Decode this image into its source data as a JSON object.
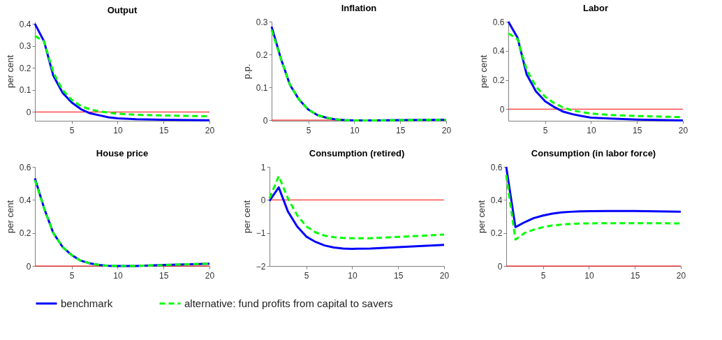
{
  "chart_data": [
    {
      "type": "line",
      "title": "Output",
      "ylabel": "per cent",
      "x": [
        1,
        2,
        3,
        4,
        5,
        6,
        7,
        8,
        9,
        10,
        12,
        15,
        20
      ],
      "xlim": [
        1,
        20
      ],
      "xticks": [
        5,
        10,
        15,
        20
      ],
      "ylim": [
        -0.04,
        0.41
      ],
      "yticks": [
        0,
        0.1,
        0.2,
        0.3,
        0.4
      ],
      "grid": false,
      "legend": "bottom",
      "series": [
        {
          "name": "benchmark",
          "color": "#0000ff",
          "line_style": "solid",
          "values": [
            0.4,
            0.32,
            0.165,
            0.088,
            0.043,
            0.013,
            -0.006,
            -0.015,
            -0.024,
            -0.029,
            -0.033,
            -0.035,
            -0.038
          ]
        },
        {
          "name": "alternative: fund profits from capital to savers",
          "color": "#00ff00",
          "line_style": "dashed",
          "values": [
            0.345,
            0.32,
            0.18,
            0.1,
            0.055,
            0.027,
            0.012,
            0.003,
            -0.003,
            -0.008,
            -0.013,
            -0.016,
            -0.02
          ]
        }
      ],
      "ref_lines": [
        {
          "axis": "y",
          "value": 0,
          "color": "#ff0000"
        }
      ]
    },
    {
      "type": "line",
      "title": "Inflation",
      "ylabel": "p.p.",
      "x": [
        1,
        2,
        3,
        4,
        5,
        6,
        7,
        8,
        9,
        10,
        12,
        15,
        20
      ],
      "xlim": [
        1,
        20
      ],
      "xticks": [
        5,
        10,
        15,
        20
      ],
      "ylim": [
        -0.002,
        0.3
      ],
      "yticks": [
        0,
        0.1,
        0.2,
        0.3
      ],
      "grid": false,
      "legend": "bottom",
      "series": [
        {
          "name": "benchmark",
          "color": "#0000ff",
          "line_style": "solid",
          "values": [
            0.285,
            0.188,
            0.107,
            0.062,
            0.032,
            0.015,
            0.007,
            0.002,
            0,
            -0.001,
            -0.001,
            0,
            0.001
          ]
        },
        {
          "name": "alternative: fund profits from capital to savers",
          "color": "#00ff00",
          "line_style": "dashed",
          "values": [
            0.275,
            0.188,
            0.107,
            0.062,
            0.032,
            0.015,
            0.007,
            0.002,
            0,
            -0.001,
            -0.001,
            0,
            0.001
          ]
        }
      ],
      "ref_lines": [
        {
          "axis": "y",
          "value": 0,
          "color": "#ff0000"
        }
      ]
    },
    {
      "type": "line",
      "title": "Labor",
      "ylabel": "per cent",
      "x": [
        1,
        2,
        3,
        4,
        5,
        6,
        7,
        8,
        9,
        10,
        12,
        15,
        20
      ],
      "xlim": [
        1,
        20
      ],
      "xticks": [
        5,
        10,
        15,
        20
      ],
      "ylim": [
        -0.08,
        0.6
      ],
      "yticks": [
        0,
        0.2,
        0.4,
        0.6
      ],
      "grid": false,
      "legend": "bottom",
      "series": [
        {
          "name": "benchmark",
          "color": "#0000ff",
          "line_style": "solid",
          "values": [
            0.6,
            0.49,
            0.237,
            0.122,
            0.054,
            0.014,
            -0.018,
            -0.035,
            -0.048,
            -0.058,
            -0.065,
            -0.072,
            -0.078
          ]
        },
        {
          "name": "alternative: fund profits from capital to savers",
          "color": "#00ff00",
          "line_style": "dashed",
          "values": [
            0.52,
            0.48,
            0.27,
            0.155,
            0.085,
            0.04,
            0.01,
            -0.01,
            -0.02,
            -0.03,
            -0.04,
            -0.047,
            -0.055
          ]
        }
      ],
      "ref_lines": [
        {
          "axis": "y",
          "value": 0,
          "color": "#ff0000"
        }
      ]
    },
    {
      "type": "line",
      "title": "House price",
      "ylabel": "per cent",
      "x": [
        1,
        2,
        3,
        4,
        5,
        6,
        7,
        8,
        9,
        10,
        12,
        15,
        20
      ],
      "xlim": [
        1,
        20
      ],
      "xticks": [
        5,
        10,
        15,
        20
      ],
      "ylim": [
        0,
        0.6
      ],
      "yticks": [
        0,
        0.2,
        0.4,
        0.6
      ],
      "grid": false,
      "legend": "bottom",
      "series": [
        {
          "name": "benchmark",
          "color": "#0000ff",
          "line_style": "solid",
          "values": [
            0.53,
            0.35,
            0.2,
            0.116,
            0.066,
            0.032,
            0.016,
            0.006,
            0.001,
            0,
            0,
            0.006,
            0.014
          ]
        },
        {
          "name": "alternative: fund profits from capital to savers",
          "color": "#00ff00",
          "line_style": "dashed",
          "values": [
            0.52,
            0.35,
            0.2,
            0.116,
            0.066,
            0.032,
            0.016,
            0.006,
            0.001,
            0,
            0,
            0.006,
            0.014
          ]
        }
      ],
      "ref_lines": [
        {
          "axis": "y",
          "value": 0,
          "color": "#ff0000"
        }
      ]
    },
    {
      "type": "line",
      "title": "Consumption (retired)",
      "ylabel": "per cent",
      "x": [
        1,
        2,
        3,
        4,
        5,
        6,
        7,
        8,
        9,
        10,
        12,
        15,
        20
      ],
      "xlim": [
        1,
        20
      ],
      "xticks": [
        5,
        10,
        15,
        20
      ],
      "ylim": [
        -2,
        1
      ],
      "yticks": [
        -2,
        -1,
        0,
        1
      ],
      "grid": false,
      "legend": "bottom",
      "series": [
        {
          "name": "benchmark",
          "color": "#0000ff",
          "line_style": "solid",
          "values": [
            -0.03,
            0.38,
            -0.35,
            -0.8,
            -1.11,
            -1.27,
            -1.38,
            -1.44,
            -1.47,
            -1.48,
            -1.47,
            -1.43,
            -1.36
          ]
        },
        {
          "name": "alternative: fund profits from capital to savers",
          "color": "#00ff00",
          "line_style": "dashed",
          "values": [
            0.05,
            0.72,
            0.05,
            -0.46,
            -0.8,
            -0.98,
            -1.08,
            -1.13,
            -1.15,
            -1.16,
            -1.16,
            -1.12,
            -1.05
          ]
        }
      ],
      "ref_lines": [
        {
          "axis": "y",
          "value": 0,
          "color": "#ff0000"
        }
      ]
    },
    {
      "type": "line",
      "title": "Consumption (in labor force)",
      "ylabel": "per cent",
      "x": [
        1,
        2,
        3,
        4,
        5,
        6,
        7,
        8,
        9,
        10,
        12,
        15,
        20
      ],
      "xlim": [
        1,
        20
      ],
      "xticks": [
        5,
        10,
        15,
        20
      ],
      "ylim": [
        0,
        0.6
      ],
      "yticks": [
        0,
        0.2,
        0.4,
        0.6
      ],
      "grid": false,
      "legend": "bottom",
      "series": [
        {
          "name": "benchmark",
          "color": "#0000ff",
          "line_style": "solid",
          "values": [
            0.6,
            0.235,
            0.265,
            0.29,
            0.305,
            0.317,
            0.324,
            0.328,
            0.331,
            0.332,
            0.333,
            0.333,
            0.328
          ]
        },
        {
          "name": "alternative: fund profits from capital to savers",
          "color": "#00ff00",
          "line_style": "dashed",
          "values": [
            0.55,
            0.16,
            0.2,
            0.22,
            0.235,
            0.245,
            0.25,
            0.255,
            0.257,
            0.258,
            0.259,
            0.259,
            0.258
          ]
        }
      ],
      "ref_lines": [
        {
          "axis": "y",
          "value": 0,
          "color": "#ff0000"
        }
      ]
    }
  ]
}
